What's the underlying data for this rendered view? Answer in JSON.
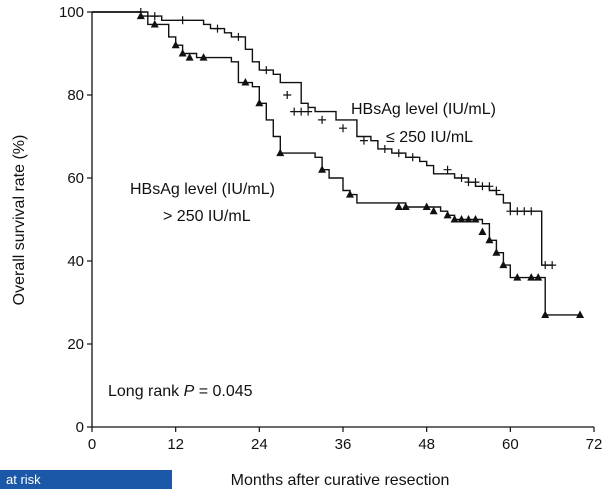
{
  "chart_data": {
    "type": "line",
    "xlabel": "Months after curative resection",
    "ylabel": "Overall survival rate  (%)",
    "xlim": [
      0,
      72
    ],
    "ylim": [
      0,
      100
    ],
    "xticks": [
      "0",
      "12",
      "24",
      "36",
      "48",
      "60",
      "72"
    ],
    "yticks": [
      "0",
      "20",
      "40",
      "60",
      "80",
      "100"
    ],
    "grid": false,
    "series": [
      {
        "name": "HBsAg level (IU/mL) ≤ 250 IU/mL",
        "label_line1": "HBsAg level (IU/mL)",
        "label_line2": "≤ 250 IU/mL",
        "marker": "plus",
        "steps": [
          [
            0,
            100
          ],
          [
            6,
            100
          ],
          [
            8,
            99
          ],
          [
            10,
            98
          ],
          [
            16,
            97
          ],
          [
            17,
            96
          ],
          [
            19,
            95
          ],
          [
            20,
            94
          ],
          [
            22,
            91
          ],
          [
            23,
            88
          ],
          [
            24,
            86
          ],
          [
            26,
            85
          ],
          [
            27,
            83
          ],
          [
            30,
            78
          ],
          [
            31,
            77
          ],
          [
            32,
            76
          ],
          [
            35,
            74
          ],
          [
            38,
            70
          ],
          [
            40,
            69
          ],
          [
            41,
            67
          ],
          [
            43,
            66
          ],
          [
            45,
            65
          ],
          [
            47,
            64
          ],
          [
            48,
            63
          ],
          [
            49,
            61
          ],
          [
            52,
            60
          ],
          [
            54,
            59
          ],
          [
            55,
            58
          ],
          [
            57,
            57
          ],
          [
            58,
            56
          ],
          [
            59,
            54
          ],
          [
            60,
            52
          ],
          [
            64,
            52
          ],
          [
            64.5,
            39
          ],
          [
            66,
            39
          ]
        ],
        "censors": [
          [
            7,
            100
          ],
          [
            9,
            99
          ],
          [
            13,
            98
          ],
          [
            18,
            96
          ],
          [
            21,
            94
          ],
          [
            25,
            86
          ],
          [
            28,
            80
          ],
          [
            29,
            76
          ],
          [
            30,
            76
          ],
          [
            31,
            76
          ],
          [
            33,
            74
          ],
          [
            36,
            72
          ],
          [
            39,
            69
          ],
          [
            42,
            67
          ],
          [
            44,
            66
          ],
          [
            46,
            65
          ],
          [
            51,
            62
          ],
          [
            53,
            60
          ],
          [
            54,
            59
          ],
          [
            55,
            59
          ],
          [
            56,
            58
          ],
          [
            57,
            58
          ],
          [
            58,
            57
          ],
          [
            60,
            52
          ],
          [
            61,
            52
          ],
          [
            62,
            52
          ],
          [
            63,
            52
          ],
          [
            65,
            39
          ],
          [
            66,
            39
          ]
        ]
      },
      {
        "name": "HBsAg level (IU/mL) > 250 IU/mL",
        "label_line1": "HBsAg level (IU/mL)",
        "label_line2": "> 250  IU/mL",
        "marker": "triangle",
        "steps": [
          [
            0,
            100
          ],
          [
            6,
            100
          ],
          [
            7,
            99
          ],
          [
            8,
            97
          ],
          [
            11,
            94
          ],
          [
            12,
            92
          ],
          [
            13,
            90
          ],
          [
            15,
            89
          ],
          [
            20,
            88
          ],
          [
            21,
            83
          ],
          [
            23,
            82
          ],
          [
            24,
            78
          ],
          [
            25,
            74
          ],
          [
            26,
            70
          ],
          [
            27,
            66
          ],
          [
            32,
            65
          ],
          [
            33,
            62
          ],
          [
            34,
            60
          ],
          [
            36,
            57
          ],
          [
            37,
            56
          ],
          [
            38,
            54
          ],
          [
            40,
            54
          ],
          [
            42,
            54
          ],
          [
            45,
            53
          ],
          [
            50,
            52
          ],
          [
            51,
            51
          ],
          [
            52,
            50
          ],
          [
            55,
            50
          ],
          [
            56,
            49
          ],
          [
            57,
            45
          ],
          [
            58,
            42
          ],
          [
            59,
            39
          ],
          [
            60,
            36
          ],
          [
            63,
            36
          ],
          [
            64,
            36
          ],
          [
            65,
            27
          ],
          [
            70,
            27
          ]
        ],
        "censors": [
          [
            7,
            99
          ],
          [
            9,
            97
          ],
          [
            12,
            92
          ],
          [
            13,
            90
          ],
          [
            14,
            89
          ],
          [
            16,
            89
          ],
          [
            22,
            83
          ],
          [
            24,
            78
          ],
          [
            27,
            66
          ],
          [
            33,
            62
          ],
          [
            37,
            56
          ],
          [
            44,
            53
          ],
          [
            45,
            53
          ],
          [
            48,
            53
          ],
          [
            49,
            52
          ],
          [
            51,
            51
          ],
          [
            52,
            50
          ],
          [
            53,
            50
          ],
          [
            54,
            50
          ],
          [
            55,
            50
          ],
          [
            56,
            47
          ],
          [
            57,
            45
          ],
          [
            58,
            42
          ],
          [
            59,
            39
          ],
          [
            61,
            36
          ],
          [
            63,
            36
          ],
          [
            64,
            36
          ],
          [
            65,
            27
          ],
          [
            70,
            27
          ]
        ]
      }
    ],
    "annotation_prefix": "Long rank ",
    "annotation_p": "P",
    "annotation_suffix": " = 0.045"
  },
  "footer": {
    "at_risk_label": "at risk"
  },
  "colors": {
    "line": "#111111",
    "banner": "#1b59a8"
  }
}
